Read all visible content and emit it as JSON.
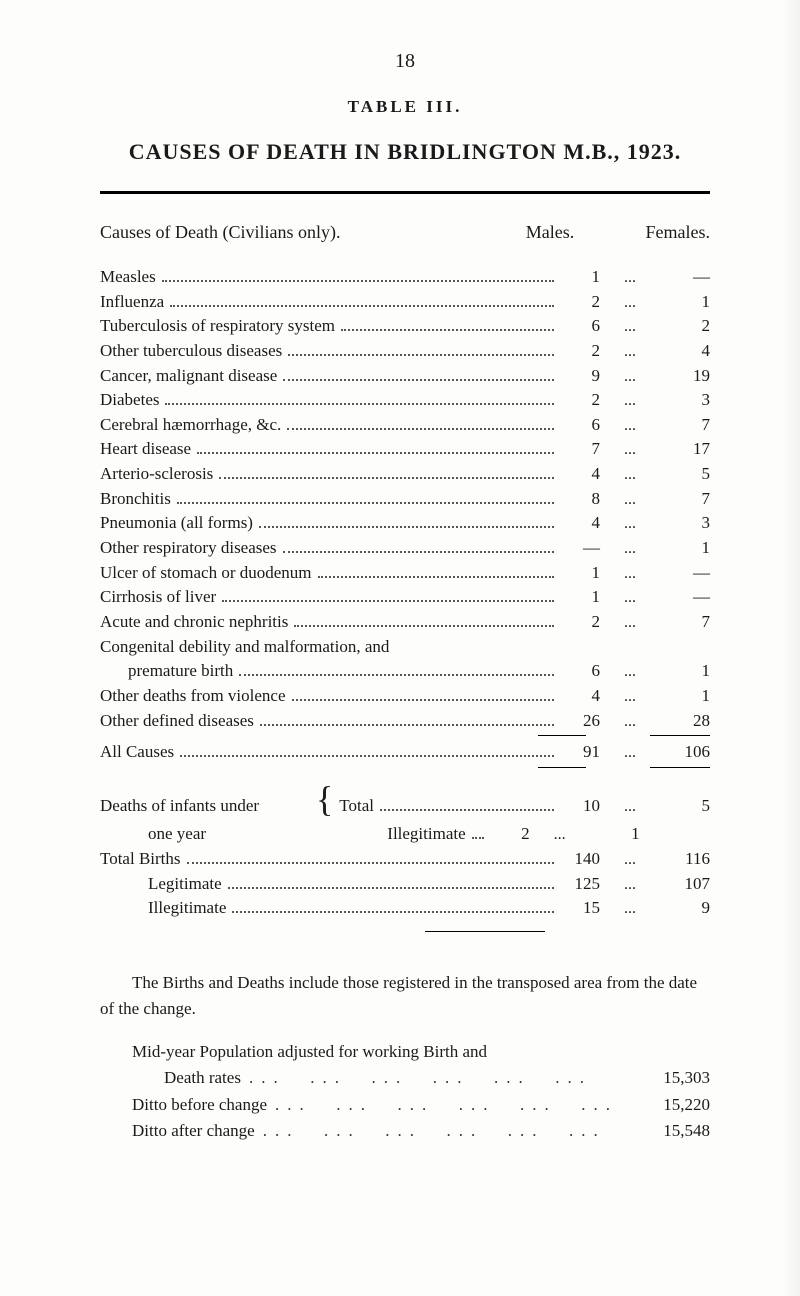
{
  "page_number": "18",
  "table_label": "TABLE III.",
  "title": "CAUSES OF DEATH IN BRIDLINGTON M.B., 1923.",
  "header": {
    "causes_label": "Causes of Death (Civilians only).",
    "males": "Males.",
    "females": "Females."
  },
  "sep": "...",
  "rows": [
    {
      "label": "Measles",
      "m": "1",
      "f": "—"
    },
    {
      "label": "Influenza",
      "m": "2",
      "f": "1"
    },
    {
      "label": "Tuberculosis of respiratory system",
      "m": "6",
      "f": "2"
    },
    {
      "label": "Other tuberculous diseases",
      "m": "2",
      "f": "4"
    },
    {
      "label": "Cancer, malignant disease",
      "m": "9",
      "f": "19"
    },
    {
      "label": "Diabetes",
      "m": "2",
      "f": "3"
    },
    {
      "label": "Cerebral hæmorrhage, &c.",
      "m": "6",
      "f": "7"
    },
    {
      "label": "Heart disease",
      "m": "7",
      "f": "17"
    },
    {
      "label": "Arterio-sclerosis",
      "m": "4",
      "f": "5"
    },
    {
      "label": "Bronchitis",
      "m": "8",
      "f": "7"
    },
    {
      "label": "Pneumonia (all forms)",
      "m": "4",
      "f": "3"
    },
    {
      "label": "Other respiratory diseases",
      "m": "—",
      "f": "1"
    },
    {
      "label": "Ulcer of stomach or duodenum",
      "m": "1",
      "f": "—"
    },
    {
      "label": "Cirrhosis of liver",
      "m": "1",
      "f": "—"
    },
    {
      "label": "Acute and chronic nephritis",
      "m": "2",
      "f": "7"
    },
    {
      "label": "Congenital debility and malformation, and premature birth",
      "m": "6",
      "f": "1",
      "wrap": true
    },
    {
      "label": "Other deaths from violence",
      "m": "4",
      "f": "1"
    },
    {
      "label": "Other defined diseases",
      "m": "26",
      "f": "28"
    }
  ],
  "all_causes": {
    "label": "All Causes",
    "m": "91",
    "f": "106"
  },
  "infants": {
    "left1": "Deaths of infants under",
    "left2": "one year",
    "total_label": "Total",
    "illeg_label": "Illegitimate",
    "total_m": "10",
    "total_f": "5",
    "illeg_m": "2",
    "illeg_f": "1"
  },
  "births": [
    {
      "label": "Total Births",
      "m": "140",
      "f": "116"
    },
    {
      "label": "Legitimate",
      "m": "125",
      "f": "107",
      "indent": true
    },
    {
      "label": "Illegitimate",
      "m": "15",
      "f": "9",
      "indent": true
    }
  ],
  "paragraph": "The Births and Deaths include those registered in the transposed area from the date of the change.",
  "midyear_label": "Mid-year Population adjusted for working Birth and",
  "rates": [
    {
      "label": "Death rates",
      "val": "15,303"
    },
    {
      "label": "Ditto before change",
      "val": "15,220"
    },
    {
      "label": "Ditto after change",
      "val": "15,548"
    }
  ],
  "colors": {
    "text": "#1a1a1a",
    "bg": "#fdfdfb",
    "rule": "#000000"
  }
}
